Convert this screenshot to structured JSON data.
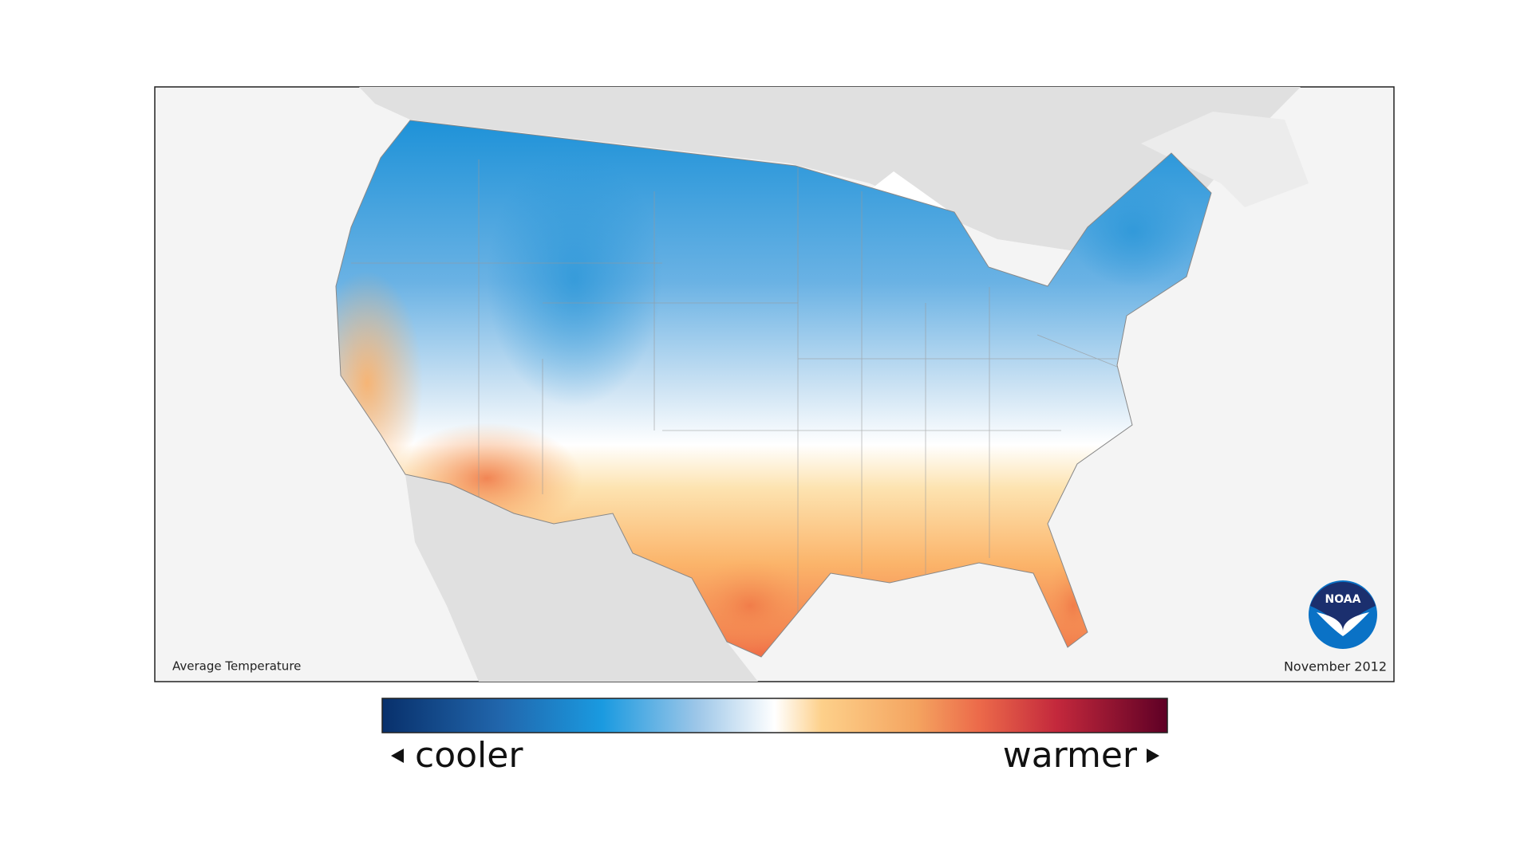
{
  "map": {
    "caption": "Average Temperature",
    "date": "November 2012",
    "logo": "NOAA"
  },
  "legend": {
    "low": "cooler",
    "high": "warmer"
  }
}
